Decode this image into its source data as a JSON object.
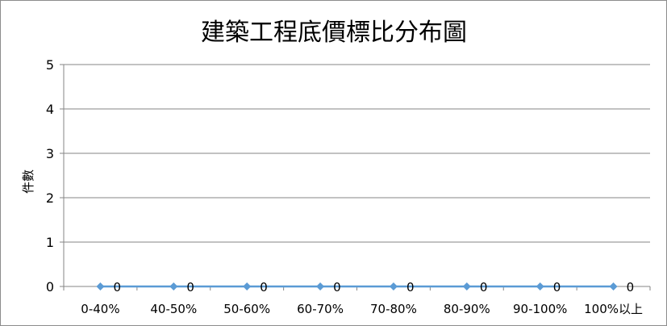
{
  "chart_data": {
    "type": "line",
    "title": "建築工程底價標比分布圖",
    "xlabel": "",
    "ylabel": "件數",
    "categories": [
      "0-40%",
      "40-50%",
      "50-60%",
      "60-70%",
      "70-80%",
      "80-90%",
      "90-100%",
      "100%以上"
    ],
    "values": [
      0,
      0,
      0,
      0,
      0,
      0,
      0,
      0
    ],
    "data_labels": [
      "0",
      "0",
      "0",
      "0",
      "0",
      "0",
      "0",
      "0"
    ],
    "ylim": [
      0,
      5
    ],
    "yticks": [
      "0",
      "1",
      "2",
      "3",
      "4",
      "5"
    ],
    "grid": true,
    "legend": "none",
    "marker": "diamond",
    "series_color": "#5b9bd5",
    "grid_color": "#868686"
  }
}
